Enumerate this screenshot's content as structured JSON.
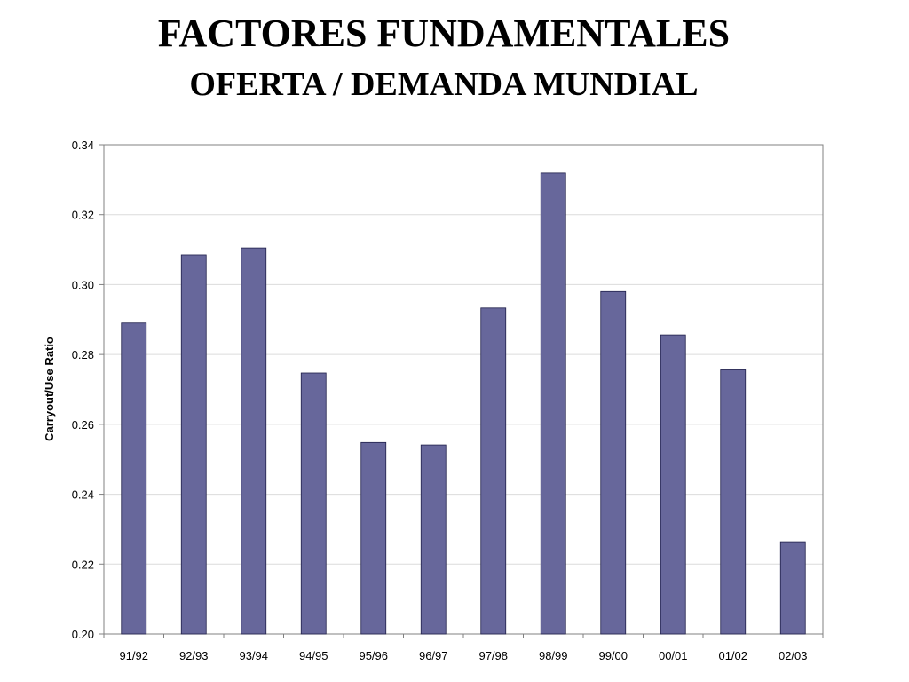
{
  "slide": {
    "title": "FACTORES FUNDAMENTALES",
    "subtitle": "OFERTA / DEMANDA MUNDIAL"
  },
  "colors": {
    "bar": "#67679b",
    "bar_outline": "#1f1f4a",
    "grid": "#dcdcdc",
    "axis": "#808080"
  },
  "chart_data": {
    "type": "bar",
    "title": "",
    "xlabel": "",
    "ylabel": "Carryout/Use Ratio",
    "categories": [
      "91/92",
      "92/93",
      "93/94",
      "94/95",
      "95/96",
      "96/97",
      "97/98",
      "98/99",
      "99/00",
      "00/01",
      "01/02",
      "02/03"
    ],
    "values": [
      0.289,
      0.3085,
      0.3105,
      0.2747,
      0.2548,
      0.2541,
      0.2933,
      0.3319,
      0.298,
      0.2856,
      0.2756,
      0.2264
    ],
    "ylim": [
      0.2,
      0.34
    ],
    "yticks": [
      "0.20",
      "0.22",
      "0.24",
      "0.26",
      "0.28",
      "0.30",
      "0.32",
      "0.34"
    ],
    "grid": true,
    "legend": "none"
  }
}
